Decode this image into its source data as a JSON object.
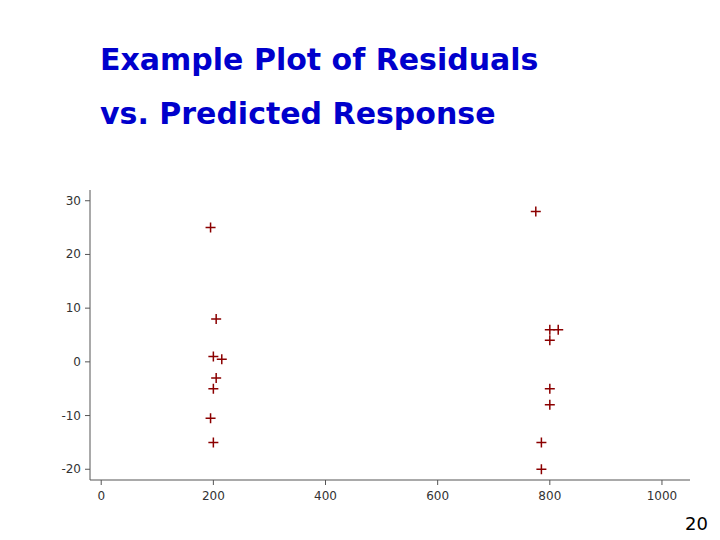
{
  "chart_data": {
    "type": "scatter",
    "title": "Example Plot of Residuals",
    "subtitle": "vs. Predicted Response",
    "annotations": [
      "20"
    ],
    "x": [
      195,
      205,
      200,
      215,
      205,
      200,
      195,
      200,
      775,
      800,
      815,
      800,
      800,
      800,
      785,
      785
    ],
    "values": [
      25,
      8,
      1,
      0.5,
      -3,
      -5,
      -10.5,
      -15,
      28,
      6,
      6,
      4,
      -5,
      -8,
      -15,
      -20
    ],
    "color": "#8B0000",
    "marker": "plus",
    "xlim": [
      -20,
      1050
    ],
    "ylim": [
      -22,
      32
    ],
    "xticks": [
      0,
      200,
      400,
      600,
      800,
      1000
    ],
    "yticks": [
      -20,
      -10,
      0,
      10,
      20,
      30
    ],
    "grid": false
  }
}
